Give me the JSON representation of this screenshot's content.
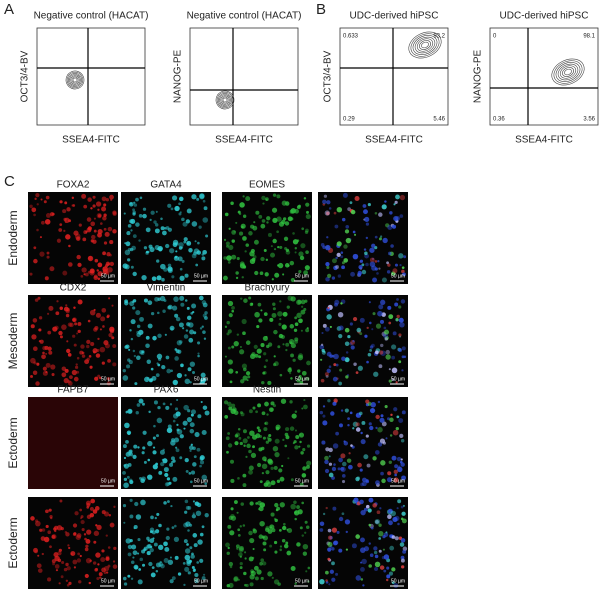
{
  "panels": {
    "a": "A",
    "b": "B",
    "c": "C"
  },
  "flow_plots": [
    {
      "title": "Negative control (HACAT)",
      "x_label": "SSEA4-FITC",
      "y_label": "OCT3/4-BV"
    },
    {
      "title": "Negative control (HACAT)",
      "x_label": "SSEA4-FITC",
      "y_label": "NANOG-PE"
    },
    {
      "title": "UDC-derived hiPSC",
      "x_label": "SSEA4-FITC",
      "y_label": "OCT3/4-BV",
      "quadrants": [
        "0.633",
        "93.2",
        "0.29",
        "5.46"
      ]
    },
    {
      "title": "UDC-derived hiPSC",
      "x_label": "SSEA4-FITC",
      "y_label": "NANOG-PE",
      "quadrants": [
        "0",
        "98.1",
        "0.36",
        "3.56"
      ]
    }
  ],
  "microscopy": {
    "rows": [
      {
        "label": "Endoderm",
        "markers": [
          "FOXA2",
          "GATA4",
          "EOMES"
        ]
      },
      {
        "label": "Mesoderm",
        "markers": [
          "CDX2",
          "Vimentin",
          "Brachyury"
        ]
      },
      {
        "label": "Ectoderm",
        "markers": [
          "FAPB7",
          "PAX6",
          "Nestin"
        ]
      },
      {
        "label": "Ectoderm"
      }
    ],
    "scale_bar": "50 µm"
  }
}
